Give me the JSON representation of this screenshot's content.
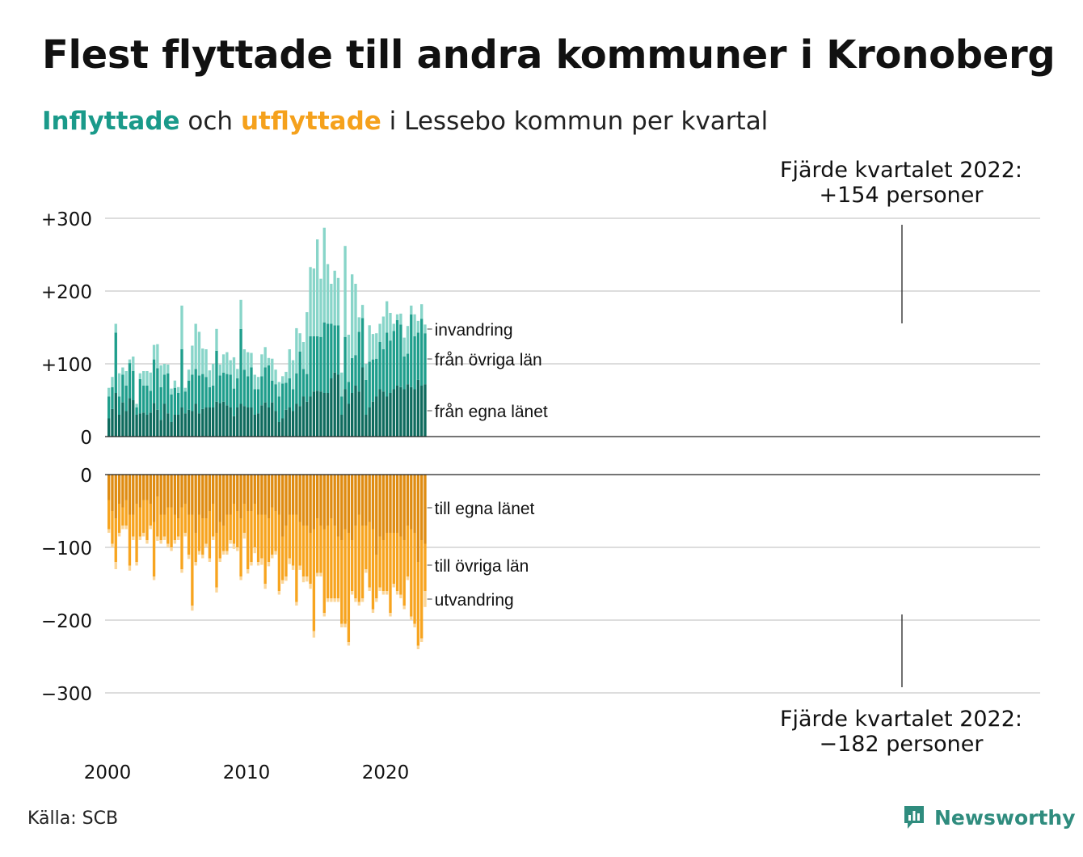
{
  "title": "Flest flyttade till andra kommuner i Kronoberg",
  "subtitle": {
    "in_word": "Inflyttade",
    "mid": " och ",
    "out_word": "utflyttade",
    "rest": " i Lessebo kommun per kvartal"
  },
  "source": "Källa: SCB",
  "brand": "Newsworthy",
  "colors": {
    "in_own": "#0f6b5e",
    "in_other": "#1f9e8c",
    "in_immig": "#88d5c9",
    "out_own": "#df8c12",
    "out_other": "#f7a41f",
    "out_emig": "#fbd699"
  },
  "annotations": {
    "top_line1": "Fjärde kvartalet 2022:",
    "top_line2": "+154 personer",
    "bottom_line1": "Fjärde kvartalet 2022:",
    "bottom_line2": "−182 personer"
  },
  "chart_data": {
    "type": "bar",
    "stacked": true,
    "x_label_ticks": [
      "2000",
      "2010",
      "2020"
    ],
    "x_start": "2000 Q1",
    "x_end": "2022 Q4",
    "inflow_axis": {
      "ticks": [
        0,
        100,
        200,
        300
      ],
      "tick_labels": [
        "0",
        "+100",
        "+200",
        "+300"
      ],
      "ylim": [
        0,
        300
      ]
    },
    "outflow_axis": {
      "ticks": [
        0,
        -100,
        -200,
        -300
      ],
      "tick_labels": [
        "0",
        "−100",
        "−200",
        "−300"
      ],
      "ylim": [
        -300,
        0
      ]
    },
    "inflow_series": [
      {
        "name": "från egna länet",
        "values": [
          25,
          38,
          60,
          30,
          47,
          35,
          53,
          50,
          30,
          32,
          33,
          30,
          33,
          46,
          37,
          23,
          45,
          32,
          20,
          30,
          30,
          40,
          32,
          37,
          35,
          45,
          32,
          38,
          40,
          40,
          40,
          48,
          46,
          48,
          43,
          40,
          28,
          40,
          45,
          42,
          40,
          40,
          30,
          32,
          43,
          47,
          40,
          47,
          35,
          20,
          25,
          37,
          40,
          35,
          45,
          42,
          55,
          48,
          55,
          62,
          63,
          62,
          60,
          60,
          80,
          88,
          85,
          30,
          65,
          45,
          60,
          70,
          62,
          95,
          30,
          40,
          48,
          55,
          65,
          62,
          55,
          60,
          65,
          70,
          68,
          65,
          72,
          68,
          65,
          78,
          70,
          72
        ]
      },
      {
        "name": "från övriga län",
        "values": [
          30,
          30,
          83,
          25,
          38,
          35,
          48,
          40,
          10,
          47,
          37,
          40,
          30,
          60,
          57,
          45,
          40,
          55,
          38,
          37,
          30,
          80,
          30,
          40,
          50,
          48,
          52,
          48,
          42,
          28,
          30,
          70,
          38,
          40,
          43,
          45,
          38,
          40,
          103,
          50,
          43,
          55,
          35,
          33,
          40,
          48,
          58,
          30,
          37,
          35,
          48,
          37,
          40,
          30,
          42,
          75,
          38,
          38,
          83,
          76,
          75,
          75,
          97,
          95,
          75,
          65,
          68,
          25,
          72,
          30,
          48,
          42,
          82,
          68,
          48,
          63,
          58,
          52,
          65,
          58,
          88,
          72,
          80,
          90,
          86,
          45,
          42,
          100,
          73,
          65,
          92,
          70
        ]
      },
      {
        "name": "invandring",
        "values": [
          12,
          14,
          12,
          32,
          10,
          20,
          5,
          20,
          5,
          8,
          20,
          20,
          25,
          20,
          33,
          30,
          15,
          12,
          8,
          10,
          8,
          60,
          5,
          15,
          40,
          62,
          60,
          35,
          38,
          23,
          30,
          30,
          15,
          25,
          30,
          20,
          43,
          13,
          40,
          28,
          33,
          20,
          20,
          17,
          30,
          28,
          10,
          30,
          20,
          20,
          10,
          15,
          40,
          40,
          62,
          25,
          37,
          85,
          95,
          93,
          133,
          80,
          130,
          82,
          55,
          75,
          65,
          33,
          125,
          65,
          115,
          98,
          20,
          18,
          22,
          50,
          35,
          35,
          25,
          45,
          43,
          38,
          10,
          8,
          15,
          26,
          38,
          12,
          30,
          16,
          20,
          12
        ]
      }
    ],
    "outflow_series": [
      {
        "name": "till egna länet",
        "values": [
          -35,
          -50,
          -60,
          -40,
          -45,
          -35,
          -55,
          -55,
          -40,
          -45,
          -35,
          -35,
          -40,
          -65,
          -30,
          -55,
          -55,
          -45,
          -45,
          -55,
          -60,
          -45,
          -40,
          -55,
          -55,
          -80,
          -55,
          -60,
          -60,
          -50,
          -40,
          -80,
          -65,
          -70,
          -55,
          -55,
          -40,
          -50,
          -60,
          -40,
          -50,
          -50,
          -40,
          -55,
          -55,
          -55,
          -60,
          -45,
          -50,
          -55,
          -85,
          -70,
          -55,
          -55,
          -55,
          -65,
          -70,
          -70,
          -80,
          -75,
          -60,
          -70,
          -75,
          -70,
          -60,
          -70,
          -85,
          -90,
          -75,
          -80,
          -90,
          -70,
          -55,
          -70,
          -70,
          -65,
          -75,
          -110,
          -85,
          -90,
          -80,
          -80,
          -80,
          -80,
          -85,
          -90,
          -70,
          -75,
          -80,
          -120,
          -90,
          -95
        ]
      },
      {
        "name": "till övriga län",
        "values": [
          -40,
          -45,
          -60,
          -40,
          -25,
          -35,
          -70,
          -30,
          -80,
          -40,
          -45,
          -55,
          -30,
          -75,
          -55,
          -35,
          -30,
          -50,
          -55,
          -35,
          -25,
          -85,
          -40,
          -55,
          -125,
          -40,
          -50,
          -50,
          -35,
          -65,
          -45,
          -75,
          -50,
          -35,
          -50,
          -35,
          -55,
          -50,
          -80,
          -40,
          -80,
          -70,
          -60,
          -65,
          -60,
          -95,
          -60,
          -65,
          -55,
          -105,
          -60,
          -70,
          -60,
          -70,
          -120,
          -60,
          -70,
          -70,
          -70,
          -140,
          -75,
          -65,
          -115,
          -100,
          -110,
          -100,
          -85,
          -115,
          -130,
          -150,
          -70,
          -100,
          -120,
          -100,
          -60,
          -90,
          -110,
          -60,
          -70,
          -70,
          -80,
          -110,
          -70,
          -80,
          -80,
          -90,
          -70,
          -120,
          -125,
          -115,
          -135,
          -65
        ]
      },
      {
        "name": "utvandring",
        "values": [
          -5,
          -5,
          -10,
          -5,
          -5,
          -5,
          -7,
          -5,
          -5,
          -5,
          -5,
          -5,
          -5,
          -5,
          -6,
          -5,
          -5,
          -5,
          -5,
          -5,
          -5,
          -5,
          -5,
          -6,
          -7,
          -5,
          -5,
          -5,
          -5,
          -5,
          -5,
          -7,
          -5,
          -5,
          -5,
          -5,
          -7,
          -5,
          -5,
          -8,
          -6,
          -5,
          -8,
          -5,
          -9,
          -7,
          -6,
          -5,
          -5,
          -5,
          -5,
          -6,
          -8,
          -6,
          -5,
          -6,
          -8,
          -7,
          -7,
          -9,
          -5,
          -5,
          -5,
          -5,
          -5,
          -5,
          -5,
          -5,
          -5,
          -5,
          -5,
          -5,
          -5,
          -5,
          -5,
          -5,
          -5,
          -5,
          -5,
          -5,
          -5,
          -5,
          -5,
          -5,
          -5,
          -5,
          -5,
          -5,
          -5,
          -5,
          -5,
          -22
        ]
      }
    ],
    "end_labels_top": [
      "invandring",
      "från övriga län",
      "från egna länet"
    ],
    "end_labels_bottom": [
      "till egna länet",
      "till övriga län",
      "utvandring"
    ],
    "grid": true
  }
}
